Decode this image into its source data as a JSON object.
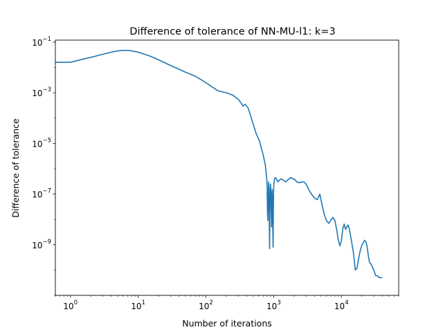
{
  "chart_data": {
    "type": "line",
    "title": "Difference of tolerance of NN-MU-l1: k=3",
    "xlabel": "Number of iterations",
    "ylabel": "Difference of tolerance",
    "xscale": "log",
    "yscale": "log",
    "xlim": [
      0.6,
      70000
    ],
    "ylim": [
      1e-11,
      0.12
    ],
    "grid": false,
    "legend": "none",
    "line_color": "#1f77b4",
    "x_ticks": [
      {
        "value": 1,
        "base": "10",
        "exp": "0"
      },
      {
        "value": 10,
        "base": "10",
        "exp": "1"
      },
      {
        "value": 100,
        "base": "10",
        "exp": "2"
      },
      {
        "value": 1000,
        "base": "10",
        "exp": "3"
      },
      {
        "value": 10000,
        "base": "10",
        "exp": "4"
      }
    ],
    "y_ticks": [
      {
        "value": 0.1,
        "base": "10",
        "exp": "−1"
      },
      {
        "value": 0.001,
        "base": "10",
        "exp": "−3"
      },
      {
        "value": 1e-05,
        "base": "10",
        "exp": "−5"
      },
      {
        "value": 1e-07,
        "base": "10",
        "exp": "−7"
      },
      {
        "value": 1e-09,
        "base": "10",
        "exp": "−9"
      }
    ],
    "series": [
      {
        "x": [
          0.6,
          1.0,
          1.5,
          2,
          3,
          4,
          5,
          6,
          7,
          8,
          10,
          15,
          20,
          30,
          50,
          70,
          100,
          150,
          200,
          250,
          300,
          330,
          350,
          380,
          420,
          480,
          550,
          620,
          700,
          750,
          790,
          800,
          810,
          820,
          830,
          840,
          850,
          860,
          870,
          880,
          890,
          900,
          910,
          920,
          930,
          940,
          950,
          960,
          970,
          980,
          990,
          1000,
          1030,
          1060,
          1100,
          1150,
          1200,
          1300,
          1400,
          1500,
          1600,
          1700,
          1800,
          1900,
          2000,
          2200,
          2400,
          2600,
          2800,
          3000,
          3300,
          3600,
          4000,
          4400,
          4800,
          5200,
          5600,
          6000,
          6500,
          7000,
          7500,
          8000,
          8500,
          9000,
          9500,
          10000,
          10500,
          11000,
          11500,
          12000,
          12500,
          13000,
          14000,
          15000,
          16000,
          17000,
          18000,
          19000,
          20000,
          21000,
          22000,
          23000,
          24000,
          25000,
          26000,
          27000,
          28000,
          30000,
          32000,
          34000,
          36000,
          40000
        ],
        "y": [
          0.016,
          0.016,
          0.021,
          0.025,
          0.033,
          0.04,
          0.045,
          0.047,
          0.047,
          0.045,
          0.04,
          0.028,
          0.02,
          0.012,
          0.0065,
          0.0045,
          0.0025,
          0.0012,
          0.001,
          0.0008,
          0.00055,
          0.0004,
          0.0003,
          0.00035,
          0.00025,
          8e-05,
          2.5e-05,
          1.2e-05,
          3.5e-06,
          1.5e-06,
          4e-07,
          2e-07,
          2e-08,
          9e-09,
          7e-08,
          3e-07,
          1.5e-07,
          1e-08,
          7e-10,
          3e-08,
          2e-07,
          2.5e-07,
          1e-07,
          2e-08,
          5e-09,
          6e-08,
          1.5e-07,
          8e-08,
          5e-09,
          8e-10,
          3e-08,
          2e-07,
          4e-07,
          4.5e-07,
          4e-07,
          3e-07,
          3.5e-07,
          4e-07,
          3.5e-07,
          3e-07,
          3.5e-07,
          4e-07,
          4.5e-07,
          4e-07,
          4e-07,
          3e-07,
          2.8e-07,
          3e-07,
          3e-07,
          2.5e-07,
          1.5e-07,
          1e-07,
          7e-08,
          6e-08,
          1e-07,
          3.5e-08,
          1.5e-08,
          9e-09,
          7e-09,
          9.5e-09,
          1.2e-08,
          9e-09,
          4e-09,
          1.5e-09,
          9e-10,
          1.5e-09,
          4.5e-09,
          6.5e-09,
          4e-09,
          5e-09,
          6e-09,
          4.5e-09,
          1.5e-09,
          5e-10,
          1e-10,
          1.2e-10,
          3e-10,
          6e-10,
          9.5e-10,
          1.2e-09,
          1.5e-09,
          1.3e-09,
          8e-10,
          3.5e-10,
          2e-10,
          1.8e-10,
          1.5e-10,
          1e-10,
          6e-11,
          6e-11,
          5e-11,
          5e-11
        ]
      }
    ]
  }
}
